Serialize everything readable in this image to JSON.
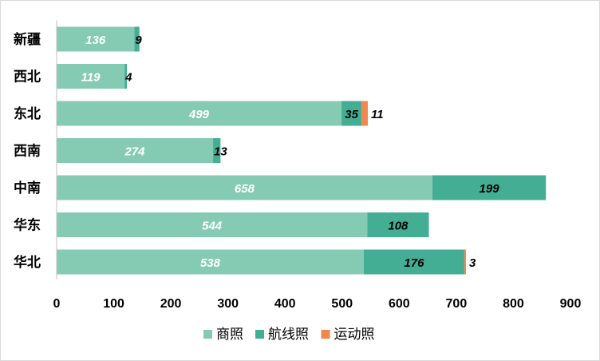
{
  "chart_data": {
    "type": "bar",
    "orientation": "horizontal",
    "stacked": true,
    "categories": [
      "新疆",
      "西北",
      "东北",
      "西南",
      "中南",
      "华东",
      "华北"
    ],
    "series": [
      {
        "name": "商照",
        "values": [
          136,
          119,
          499,
          274,
          658,
          544,
          538
        ],
        "color": "#85CBB3",
        "label_color": "#ffffff"
      },
      {
        "name": "航线照",
        "values": [
          9,
          4,
          35,
          13,
          199,
          108,
          176
        ],
        "color": "#43AE93",
        "label_color": "#000000"
      },
      {
        "name": "运动照",
        "values": [
          0,
          0,
          11,
          0,
          0,
          0,
          3
        ],
        "color": "#F0874E",
        "label_color": "#000000"
      }
    ],
    "data_labels": [
      [
        "136",
        "119",
        "499",
        "274",
        "658",
        "544",
        "538"
      ],
      [
        "9",
        "4",
        "35",
        "13",
        "199",
        "108",
        "176"
      ],
      [
        "",
        "",
        "11",
        "",
        "",
        "",
        "3"
      ]
    ],
    "xlim": [
      0,
      900
    ],
    "xticks": [
      "0",
      "100",
      "200",
      "300",
      "400",
      "500",
      "600",
      "700",
      "800",
      "900"
    ],
    "grid": false,
    "legend_position": "bottom"
  }
}
